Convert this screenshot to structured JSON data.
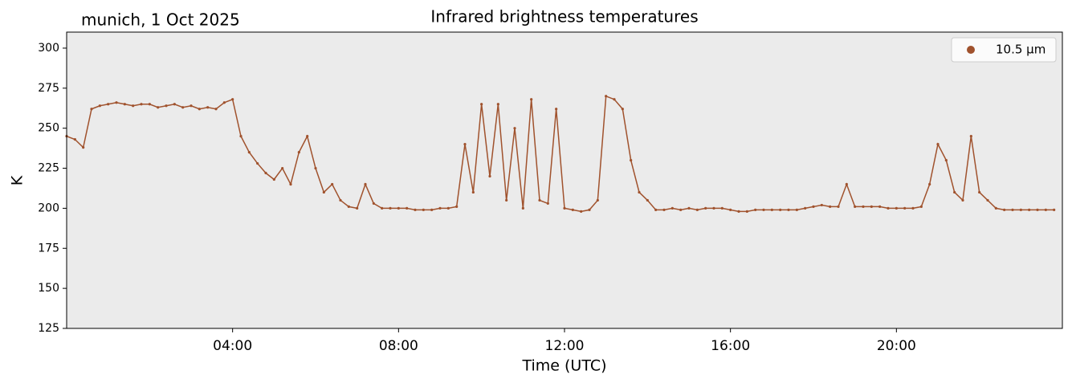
{
  "chart_data": {
    "type": "line",
    "title": "Infrared brightness temperatures",
    "subtitle": "munich, 1 Oct 2025",
    "x_label": "Time (UTC)",
    "y_label": "K",
    "x": [
      0,
      0.2,
      0.4,
      0.6,
      0.8,
      1,
      1.2,
      1.4,
      1.6,
      1.8,
      2,
      2.2,
      2.4,
      2.6,
      2.8,
      3,
      3.2,
      3.4,
      3.6,
      3.8,
      4,
      4.2,
      4.4,
      4.6,
      4.8,
      5,
      5.2,
      5.4,
      5.6,
      5.8,
      6,
      6.2,
      6.4,
      6.6,
      6.8,
      7,
      7.2,
      7.4,
      7.6,
      7.8,
      8,
      8.2,
      8.4,
      8.6,
      8.8,
      9,
      9.2,
      9.4,
      9.6,
      9.8,
      10,
      10.2,
      10.4,
      10.6,
      10.8,
      11,
      11.2,
      11.4,
      11.6,
      11.8,
      12,
      12.2,
      12.4,
      12.6,
      12.8,
      13,
      13.2,
      13.4,
      13.6,
      13.8,
      14,
      14.2,
      14.4,
      14.6,
      14.8,
      15,
      15.2,
      15.4,
      15.6,
      15.8,
      16,
      16.2,
      16.4,
      16.6,
      16.8,
      17,
      17.2,
      17.4,
      17.6,
      17.8,
      18,
      18.2,
      18.4,
      18.6,
      18.8,
      19,
      19.2,
      19.4,
      19.6,
      19.8,
      20,
      20.2,
      20.4,
      20.6,
      20.8,
      21,
      21.2,
      21.4,
      21.6,
      21.8,
      22,
      22.2,
      22.4,
      22.6,
      22.8,
      23,
      23.2,
      23.4,
      23.6,
      23.8
    ],
    "series": [
      {
        "name": "10.5 µm",
        "color": "#a0522d",
        "values": [
          245,
          243,
          238,
          262,
          264,
          265,
          266,
          265,
          264,
          265,
          265,
          263,
          264,
          265,
          263,
          264,
          262,
          263,
          262,
          266,
          268,
          245,
          235,
          228,
          222,
          218,
          225,
          215,
          235,
          245,
          225,
          210,
          215,
          205,
          201,
          200,
          215,
          203,
          200,
          200,
          200,
          200,
          199,
          199,
          199,
          200,
          200,
          201,
          240,
          210,
          265,
          220,
          265,
          205,
          250,
          200,
          268,
          205,
          203,
          262,
          200,
          199,
          198,
          199,
          205,
          270,
          268,
          262,
          230,
          210,
          205,
          199,
          199,
          200,
          199,
          200,
          199,
          200,
          200,
          200,
          199,
          198,
          198,
          199,
          199,
          199,
          199,
          199,
          199,
          200,
          201,
          202,
          201,
          201,
          215,
          201,
          201,
          201,
          201,
          200,
          200,
          200,
          200,
          201,
          215,
          240,
          230,
          210,
          205,
          245,
          210,
          205,
          200,
          199,
          199,
          199,
          199,
          199,
          199,
          199
        ]
      }
    ],
    "xlim": [
      0,
      24
    ],
    "ylim": [
      125,
      310
    ],
    "xticks": [
      {
        "value": 4,
        "label": "04:00"
      },
      {
        "value": 8,
        "label": "08:00"
      },
      {
        "value": 12,
        "label": "12:00"
      },
      {
        "value": 16,
        "label": "16:00"
      },
      {
        "value": 20,
        "label": "20:00"
      }
    ],
    "yticks": [
      125,
      150,
      175,
      200,
      225,
      250,
      275,
      300
    ],
    "legend": "upper right",
    "background": "#ebebeb"
  }
}
